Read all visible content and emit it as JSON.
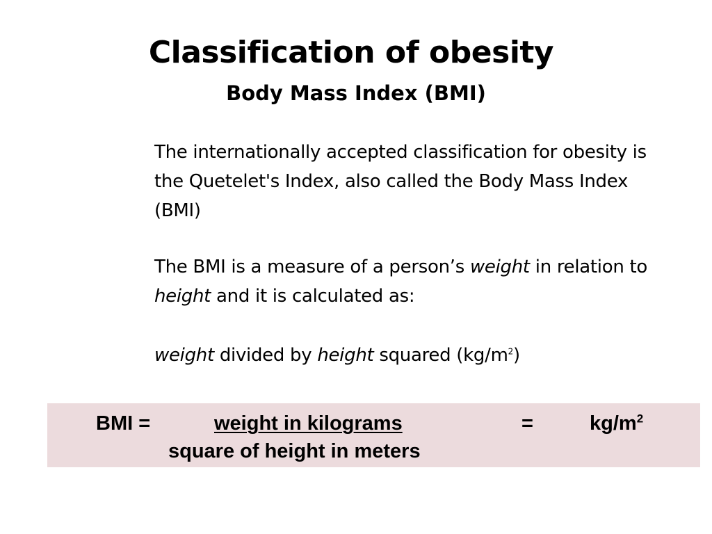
{
  "title": "Classification of obesity",
  "subtitle": "Body Mass Index (BMI)",
  "paragraph1": "The internationally accepted classification for obesity is the Quetelet's Index, also called the Body Mass Index (BMI)",
  "paragraph2": {
    "part1": "The BMI is a measure of a person’s ",
    "weight": "weight",
    "part2": " in relation to ",
    "height": "height",
    "part3": " and it is calculated as:"
  },
  "paragraph3": {
    "weight": "weight",
    "part1": " divided by ",
    "height": "height",
    "part2": " squared (kg/m",
    "superscript": "2",
    "part3": ")"
  },
  "formula": {
    "bmi_label": "BMI  =",
    "numerator": "weight in kilograms",
    "equals": "=",
    "result_unit": "kg/m",
    "result_superscript": "2",
    "denominator": "square of height in meters"
  },
  "colors": {
    "formula_background": "#ecdbdd",
    "text": "#000000"
  }
}
